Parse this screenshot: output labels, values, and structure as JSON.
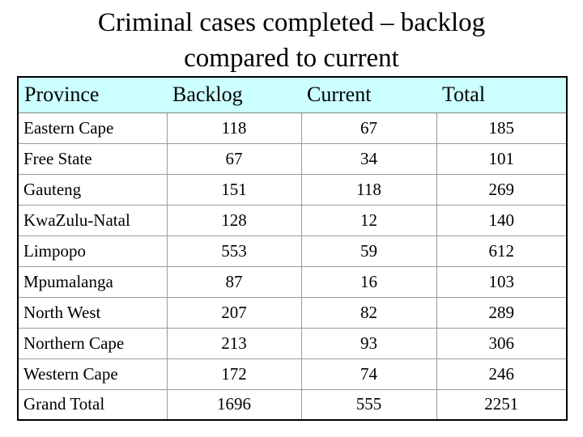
{
  "title": {
    "line1": "Criminal cases completed – backlog",
    "line2": "compared to current"
  },
  "table": {
    "headers": [
      "Province",
      "Backlog",
      "Current",
      "Total"
    ],
    "rows": [
      [
        "Eastern Cape",
        "118",
        "67",
        "185"
      ],
      [
        "Free State",
        "67",
        "34",
        "101"
      ],
      [
        "Gauteng",
        "151",
        "118",
        "269"
      ],
      [
        "KwaZulu-Natal",
        "128",
        "12",
        "140"
      ],
      [
        "Limpopo",
        "553",
        "59",
        "612"
      ],
      [
        "Mpumalanga",
        "87",
        "16",
        "103"
      ],
      [
        "North West",
        "207",
        "82",
        "289"
      ],
      [
        "Northern Cape",
        "213",
        "93",
        "306"
      ],
      [
        "Western Cape",
        "172",
        "74",
        "246"
      ],
      [
        "Grand Total",
        "1696",
        "555",
        "2251"
      ]
    ],
    "header_bg": "#ccffff"
  }
}
